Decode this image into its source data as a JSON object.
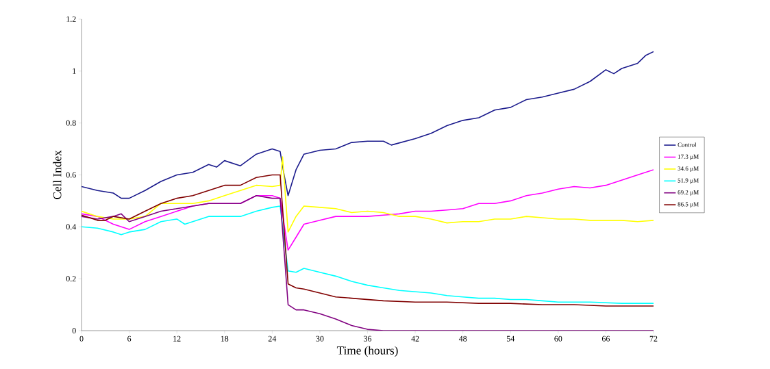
{
  "chart_data": {
    "type": "line",
    "xlabel": "Time (hours)",
    "ylabel": "Cell Index",
    "xlim": [
      0,
      72
    ],
    "xticks": [
      0,
      6,
      12,
      18,
      24,
      30,
      36,
      42,
      48,
      54,
      60,
      66,
      72
    ],
    "ylim": [
      0,
      1.2
    ],
    "yticks": [
      0,
      0.2,
      0.4,
      0.6,
      0.8,
      1,
      1.2
    ],
    "legend": "right",
    "grid": false,
    "marker": "none",
    "line_style": "solid",
    "series": [
      {
        "name": "Control",
        "color": "#1a1a8c",
        "x": [
          0,
          2,
          4,
          5,
          6,
          8,
          10,
          12,
          14,
          16,
          17,
          18,
          20,
          22,
          24,
          25,
          25.5,
          26,
          27,
          28,
          30,
          32,
          34,
          36,
          38,
          39,
          42,
          44,
          46,
          48,
          50,
          52,
          54,
          56,
          58,
          60,
          62,
          64,
          66,
          67,
          68,
          70,
          71,
          72
        ],
        "values": [
          0.555,
          0.54,
          0.53,
          0.51,
          0.51,
          0.54,
          0.575,
          0.6,
          0.61,
          0.64,
          0.63,
          0.655,
          0.635,
          0.68,
          0.7,
          0.69,
          0.6,
          0.52,
          0.62,
          0.68,
          0.695,
          0.7,
          0.725,
          0.73,
          0.73,
          0.715,
          0.74,
          0.76,
          0.79,
          0.81,
          0.82,
          0.85,
          0.86,
          0.89,
          0.9,
          0.915,
          0.93,
          0.96,
          1.005,
          0.99,
          1.01,
          1.03,
          1.06,
          1.075
        ]
      },
      {
        "name": "17.3 µM",
        "color": "#ff00ff",
        "x": [
          0,
          2,
          4,
          6,
          8,
          10,
          12,
          14,
          16,
          18,
          20,
          22,
          24,
          25,
          26,
          27,
          28,
          30,
          32,
          34,
          36,
          38,
          40,
          42,
          44,
          46,
          48,
          50,
          52,
          54,
          56,
          58,
          60,
          62,
          64,
          66,
          68,
          70,
          72
        ],
        "values": [
          0.45,
          0.44,
          0.41,
          0.39,
          0.42,
          0.44,
          0.46,
          0.48,
          0.49,
          0.49,
          0.49,
          0.52,
          0.52,
          0.51,
          0.31,
          0.36,
          0.41,
          0.425,
          0.44,
          0.44,
          0.44,
          0.445,
          0.45,
          0.46,
          0.46,
          0.465,
          0.47,
          0.49,
          0.49,
          0.5,
          0.52,
          0.53,
          0.545,
          0.555,
          0.55,
          0.56,
          0.58,
          0.6,
          0.62
        ]
      },
      {
        "name": "34.6 µM",
        "color": "#ffff00",
        "x": [
          0,
          2,
          4,
          6,
          8,
          10,
          12,
          14,
          16,
          18,
          20,
          22,
          24,
          25,
          25.3,
          26,
          27,
          28,
          30,
          32,
          34,
          36,
          38,
          40,
          42,
          44,
          46,
          48,
          50,
          52,
          54,
          56,
          58,
          60,
          62,
          64,
          66,
          68,
          70,
          72
        ],
        "values": [
          0.46,
          0.44,
          0.43,
          0.43,
          0.44,
          0.49,
          0.49,
          0.49,
          0.5,
          0.52,
          0.54,
          0.56,
          0.555,
          0.56,
          0.67,
          0.38,
          0.44,
          0.48,
          0.475,
          0.47,
          0.455,
          0.46,
          0.455,
          0.44,
          0.44,
          0.43,
          0.415,
          0.42,
          0.42,
          0.43,
          0.43,
          0.44,
          0.435,
          0.43,
          0.43,
          0.425,
          0.425,
          0.425,
          0.42,
          0.425
        ]
      },
      {
        "name": "51.9 µM",
        "color": "#00ffff",
        "x": [
          0,
          2,
          4,
          5,
          6,
          8,
          10,
          12,
          13,
          14,
          16,
          18,
          20,
          22,
          24,
          25,
          26,
          27,
          28,
          30,
          32,
          34,
          36,
          38,
          40,
          42,
          44,
          46,
          48,
          50,
          52,
          54,
          56,
          58,
          60,
          64,
          68,
          72
        ],
        "values": [
          0.4,
          0.395,
          0.38,
          0.37,
          0.38,
          0.39,
          0.42,
          0.43,
          0.41,
          0.42,
          0.44,
          0.44,
          0.44,
          0.46,
          0.475,
          0.48,
          0.23,
          0.225,
          0.24,
          0.225,
          0.21,
          0.19,
          0.175,
          0.165,
          0.155,
          0.15,
          0.145,
          0.135,
          0.13,
          0.125,
          0.125,
          0.12,
          0.12,
          0.115,
          0.11,
          0.11,
          0.105,
          0.105
        ]
      },
      {
        "name": "69.2 µM",
        "color": "#800080",
        "x": [
          0,
          2,
          4,
          5,
          6,
          8,
          10,
          12,
          14,
          16,
          18,
          20,
          22,
          24,
          25,
          26,
          27,
          28,
          30,
          32,
          34,
          36,
          38,
          72
        ],
        "values": [
          0.44,
          0.43,
          0.44,
          0.45,
          0.42,
          0.44,
          0.46,
          0.47,
          0.48,
          0.49,
          0.49,
          0.49,
          0.52,
          0.51,
          0.51,
          0.1,
          0.08,
          0.08,
          0.065,
          0.045,
          0.02,
          0.005,
          0,
          0
        ]
      },
      {
        "name": "86.5 µM",
        "color": "#800000",
        "x": [
          0,
          2,
          3,
          4,
          6,
          8,
          10,
          12,
          14,
          16,
          18,
          20,
          22,
          24,
          25,
          26,
          27,
          28,
          30,
          32,
          34,
          36,
          38,
          42,
          46,
          50,
          54,
          58,
          62,
          66,
          72
        ],
        "values": [
          0.445,
          0.425,
          0.425,
          0.44,
          0.43,
          0.46,
          0.49,
          0.51,
          0.52,
          0.54,
          0.56,
          0.56,
          0.59,
          0.6,
          0.6,
          0.18,
          0.165,
          0.16,
          0.145,
          0.13,
          0.125,
          0.12,
          0.115,
          0.11,
          0.11,
          0.105,
          0.105,
          0.1,
          0.1,
          0.095,
          0.095
        ]
      }
    ]
  }
}
